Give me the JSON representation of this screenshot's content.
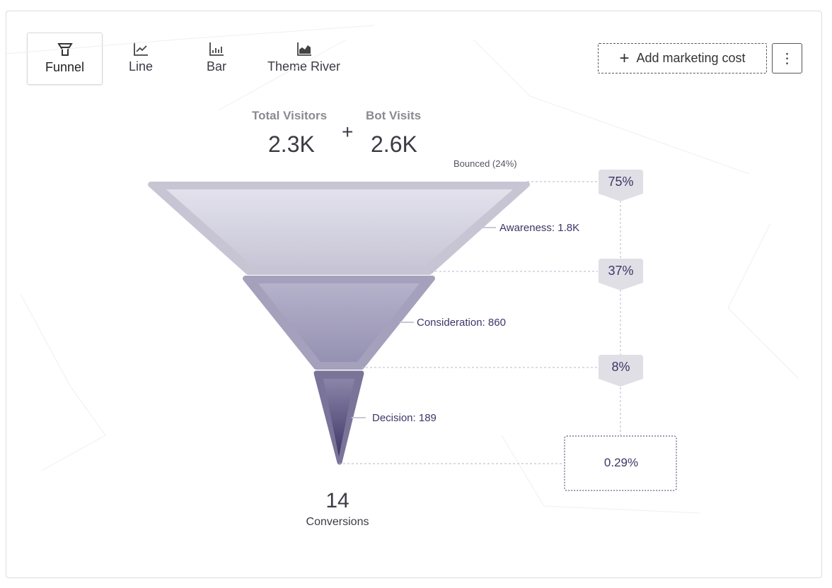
{
  "tabs": [
    {
      "label": "Funnel",
      "icon": "funnel-icon",
      "active": true
    },
    {
      "label": "Line",
      "icon": "line-chart-icon"
    },
    {
      "label": "Bar",
      "icon": "bar-chart-icon"
    },
    {
      "label": "Theme River",
      "icon": "area-chart-icon"
    }
  ],
  "actions": {
    "add_cost": "Add marketing cost",
    "more_icon": "more-vertical-icon"
  },
  "stats": {
    "total_visitors_label": "Total Visitors",
    "total_visitors": "2.3K",
    "plus": "+",
    "bot_visits_label": "Bot Visits",
    "bot_visits": "2.6K"
  },
  "funnel": {
    "bounced": "Bounced (24%)",
    "stages": [
      {
        "label": "Awareness: 1.8K",
        "rate": "75%"
      },
      {
        "label": "Consideration: 860",
        "rate": "37%"
      },
      {
        "label": "Decision: 189",
        "rate": "8%"
      }
    ],
    "final_rate": "0.29%",
    "conversions_value": "14",
    "conversions_label": "Conversions"
  },
  "colors": {
    "accent": "#3d3566",
    "stage1": "#c9c7d6",
    "stage2": "#a09cb9",
    "stage3": "#5a5285"
  }
}
